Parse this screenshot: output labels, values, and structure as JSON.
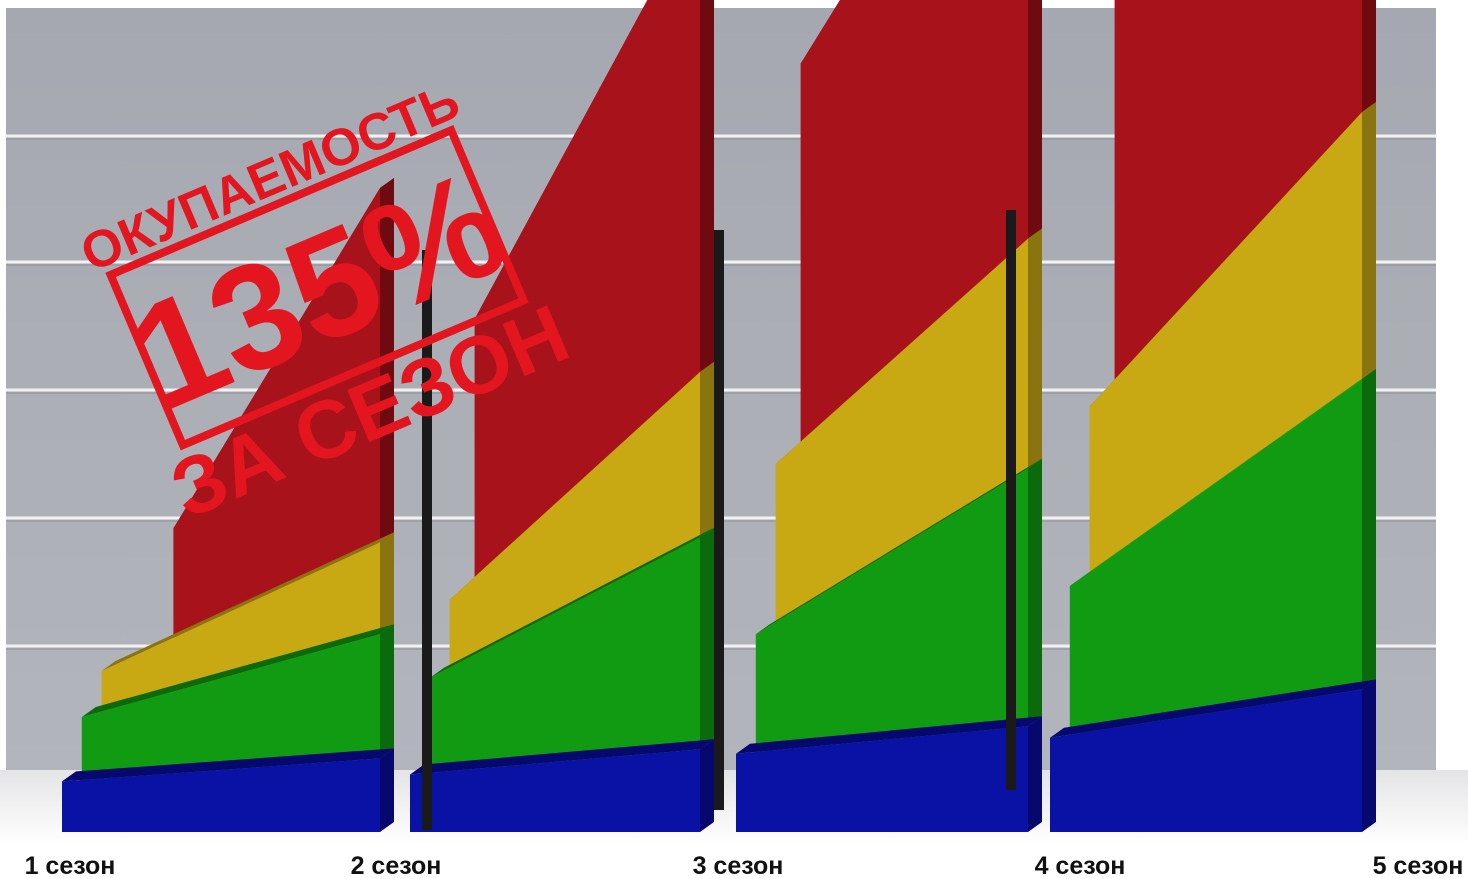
{
  "chart_data": {
    "type": "area",
    "stacked": true,
    "categories": [
      "1 сезон",
      "2 сезон",
      "3 сезон",
      "4 сезон",
      "5 сезон"
    ],
    "series": [
      {
        "color": "#0a12a6",
        "side": "#06086e",
        "start": [
          0.22,
          0.25,
          0.34,
          0.41
        ],
        "end": [
          0.32,
          0.36,
          0.46,
          0.62
        ]
      },
      {
        "color": "#109b12",
        "side": "#0a6a0c",
        "start": [
          0.28,
          0.42,
          0.52,
          0.66
        ],
        "end": [
          0.54,
          0.92,
          1.12,
          1.35
        ]
      },
      {
        "color": "#c8a813",
        "side": "#8a7410",
        "start": [
          0.2,
          0.34,
          0.74,
          0.78
        ],
        "end": [
          0.4,
          0.72,
          1.0,
          1.16
        ]
      },
      {
        "color": "#a8121b",
        "side": "#6e0a10",
        "start": [
          0.62,
          1.22,
          1.74,
          2.04
        ],
        "end": [
          1.54,
          2.04,
          2.36,
          2.88
        ]
      }
    ],
    "background": {
      "panel_color": "#a9abb3",
      "line_color": "#f2f2f2"
    },
    "grid": true,
    "legend": false
  },
  "stamp": {
    "line1": "ОКУПАЕМОСТЬ",
    "line2": "135%",
    "line3": "ЗА СЕЗОН",
    "color": "#e3161f"
  }
}
